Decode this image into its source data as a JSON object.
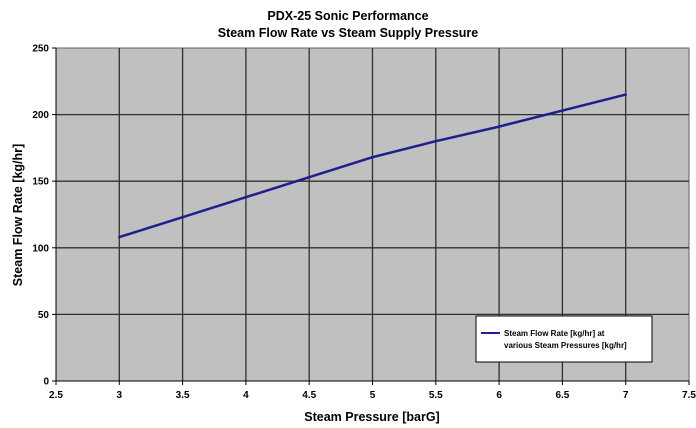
{
  "chart_data": {
    "type": "line",
    "title": "PDX-25 Sonic Performance",
    "subtitle": "Steam Flow Rate vs Steam Supply Pressure",
    "xlabel": "Steam Pressure [barG]",
    "ylabel": "Steam Flow Rate [kg/hr]",
    "xlim": [
      2.5,
      7.5
    ],
    "ylim": [
      0,
      250
    ],
    "x_ticks": [
      "2.5",
      "3",
      "3.5",
      "4",
      "4.5",
      "5",
      "5.5",
      "6",
      "6.5",
      "7",
      "7.5"
    ],
    "y_ticks": [
      "0",
      "50",
      "100",
      "150",
      "200",
      "250"
    ],
    "grid": true,
    "legend_position": "bottom-right",
    "series": [
      {
        "name": "Steam Flow Rate [kg/hr] at various Steam Pressures [kg/hr]",
        "legend_lines": [
          "Steam Flow Rate [kg/hr] at",
          "various Steam Pressures [kg/hr]"
        ],
        "color": "#1f1f8f",
        "x": [
          3,
          3.5,
          4,
          4.5,
          5,
          5.5,
          6,
          6.5,
          7
        ],
        "y": [
          108,
          123,
          138,
          153,
          168,
          180,
          191,
          203,
          215
        ]
      }
    ]
  },
  "colors": {
    "plot_background": "#c0c0c0",
    "gridline": "#303030",
    "line": "#1f1f8f"
  }
}
